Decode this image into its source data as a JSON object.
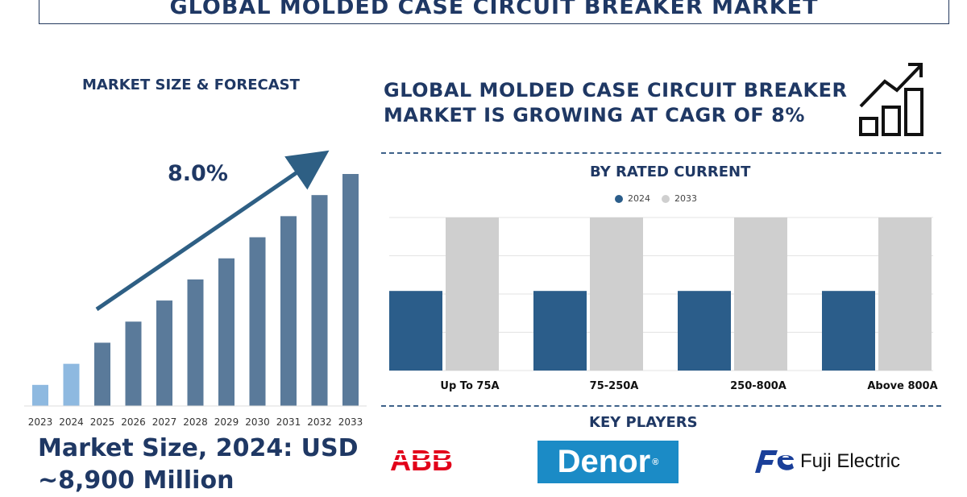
{
  "title": "GLOBAL MOLDED CASE CIRCUIT BREAKER MARKET",
  "left_heading": "MARKET SIZE & FORECAST",
  "cagr_label": "8.0%",
  "right_heading": "GLOBAL MOLDED CASE CIRCUIT BREAKER MARKET IS GROWING AT CAGR OF 8%",
  "market_size_line1": "Market Size, 2024: USD",
  "market_size_line2": "~8,900 Million",
  "by_rated_current": "BY RATED CURRENT",
  "key_players": "KEY PLAYERS",
  "players": {
    "abb": "ABB",
    "denor": "Denor",
    "denor_mark": "®",
    "fuji": "Fuji Electric"
  },
  "colors": {
    "navy": "#1f3864",
    "bar_dark": "#5a7a9a",
    "bar_light": "#8eb9e0",
    "series_2024": "#2b5d8a",
    "series_2033": "#cfcfcf",
    "abb_red": "#e2001a",
    "denor_blue": "#1b8bc6",
    "fuji_blue": "#1a3f99"
  },
  "chart_data": [
    {
      "type": "bar",
      "title": "MARKET SIZE & FORECAST",
      "categories": [
        "2023",
        "2024",
        "2025",
        "2026",
        "2027",
        "2028",
        "2029",
        "2030",
        "2031",
        "2032",
        "2033"
      ],
      "values": [
        1,
        2,
        3,
        4,
        5,
        6,
        7,
        8,
        9,
        10,
        11
      ],
      "highlight_categories": [
        "2023",
        "2024"
      ],
      "annotation": "8.0%",
      "grid": false
    },
    {
      "type": "bar",
      "title": "BY RATED CURRENT",
      "categories": [
        "Up To 75A",
        "75-250A",
        "250-800A",
        "Above 800A"
      ],
      "series": [
        {
          "name": "2024",
          "values": [
            52,
            52,
            52,
            52
          ]
        },
        {
          "name": "2033",
          "values": [
            100,
            100,
            100,
            100
          ]
        }
      ],
      "ylim": [
        0,
        100
      ],
      "legend": "top",
      "grid": true
    }
  ]
}
